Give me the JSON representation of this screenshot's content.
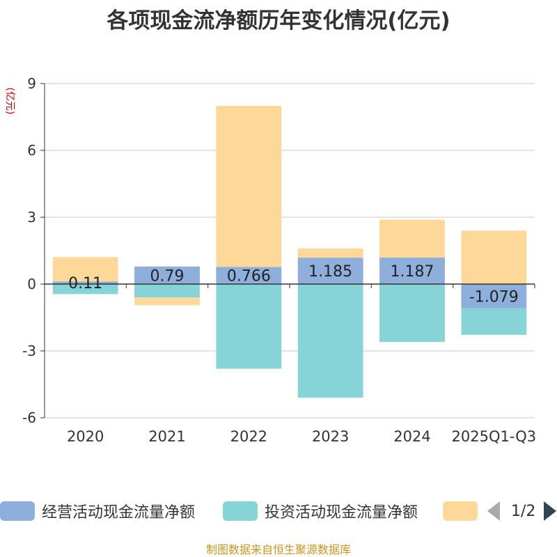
{
  "chart_data": {
    "type": "bar",
    "stacked": true,
    "title": "各项现金流净额历年变化情况(亿元)",
    "ylabel": "(亿元)",
    "ylim": [
      -6,
      9
    ],
    "yticks": [
      -6,
      -3,
      0,
      3,
      6,
      9
    ],
    "categories": [
      "2020",
      "2021",
      "2022",
      "2023",
      "2024",
      "2025Q1-Q3"
    ],
    "series": [
      {
        "name": "经营活动现金流量净额",
        "color": "#8eaedb",
        "values": [
          0.11,
          0.79,
          0.766,
          1.185,
          1.187,
          -1.079
        ],
        "labels": [
          "0.11",
          "0.79",
          "0.766",
          "1.185",
          "1.187",
          "-1.079"
        ]
      },
      {
        "name": "投资活动现金流量净额",
        "color": "#86d4d8",
        "values": [
          -0.45,
          -0.6,
          -3.8,
          -5.1,
          -2.6,
          -1.2
        ]
      },
      {
        "name": "",
        "color": "#fdd898",
        "values": [
          1.1,
          -0.35,
          7.23,
          0.41,
          1.7,
          2.4
        ]
      }
    ]
  },
  "legend": {
    "items": [
      {
        "label": "经营活动现金流量净额",
        "color": "#8eaedb"
      },
      {
        "label": "投资活动现金流量净额",
        "color": "#86d4d8"
      },
      {
        "label": "",
        "color": "#fdd898"
      }
    ],
    "page": "1/2"
  },
  "source": "制图数据来自恒生聚源数据库"
}
